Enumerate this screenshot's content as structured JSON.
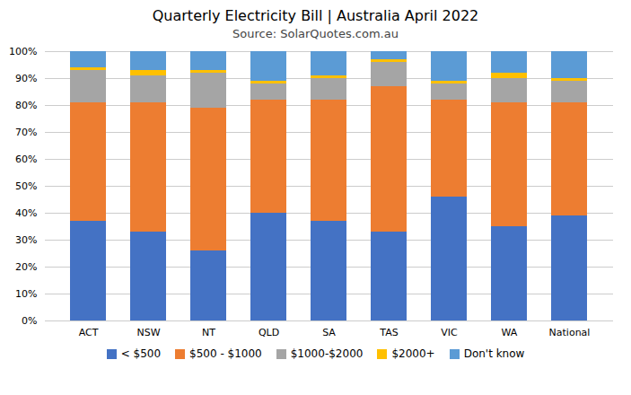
{
  "chart_data": {
    "type": "bar",
    "title": "Quarterly Electricity Bill | Australia April 2022",
    "subtitle": "Source: SolarQuotes.com.au",
    "categories": [
      "ACT",
      "NSW",
      "NT",
      "QLD",
      "SA",
      "TAS",
      "VIC",
      "WA",
      "National"
    ],
    "series": [
      {
        "name": "< $500",
        "color": "#4472C4",
        "values": [
          37,
          33,
          26,
          40,
          37,
          33,
          46,
          35,
          39
        ]
      },
      {
        "name": "$500 - $1000",
        "color": "#ED7D31",
        "values": [
          44,
          48,
          53,
          42,
          45,
          54,
          36,
          46,
          42
        ]
      },
      {
        "name": "$1000-$2000",
        "color": "#A5A5A5",
        "values": [
          12,
          10,
          13,
          6,
          8,
          9,
          6,
          9,
          8
        ]
      },
      {
        "name": "$2000+",
        "color": "#FFC000",
        "values": [
          1,
          2,
          1,
          1,
          1,
          1,
          1,
          2,
          1
        ]
      },
      {
        "name": "Don't know",
        "color": "#5B9BD5",
        "values": [
          6,
          7,
          7,
          11,
          9,
          3,
          11,
          8,
          10
        ]
      }
    ],
    "ylim": [
      0,
      100
    ],
    "yticks": [
      {
        "value": 0,
        "label": "0%"
      },
      {
        "value": 10,
        "label": "10%"
      },
      {
        "value": 20,
        "label": "20%"
      },
      {
        "value": 30,
        "label": "30%"
      },
      {
        "value": 40,
        "label": "40%"
      },
      {
        "value": 50,
        "label": "50%"
      },
      {
        "value": 60,
        "label": "60%"
      },
      {
        "value": 70,
        "label": "70%"
      },
      {
        "value": 80,
        "label": "80%"
      },
      {
        "value": 90,
        "label": "90%"
      },
      {
        "value": 100,
        "label": "100%"
      }
    ],
    "grid": true,
    "stacked": true,
    "legend": "bottom"
  }
}
